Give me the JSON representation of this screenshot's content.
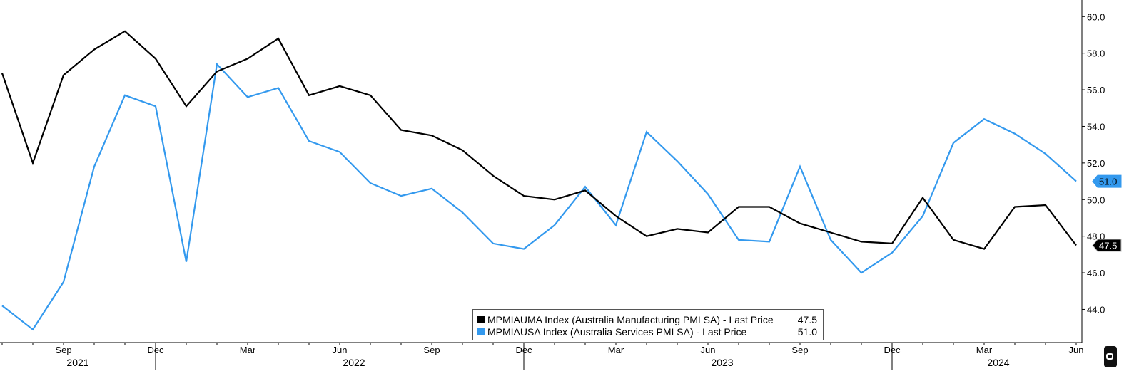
{
  "chart_data": {
    "type": "line",
    "x": [
      "2021-07",
      "2021-08",
      "2021-09",
      "2021-10",
      "2021-11",
      "2021-12",
      "2022-01",
      "2022-02",
      "2022-03",
      "2022-04",
      "2022-05",
      "2022-06",
      "2022-07",
      "2022-08",
      "2022-09",
      "2022-10",
      "2022-11",
      "2022-12",
      "2023-01",
      "2023-02",
      "2023-03",
      "2023-04",
      "2023-05",
      "2023-06",
      "2023-07",
      "2023-08",
      "2023-09",
      "2023-10",
      "2023-11",
      "2023-12",
      "2024-01",
      "2024-02",
      "2024-03",
      "2024-04",
      "2024-05",
      "2024-06"
    ],
    "series": [
      {
        "name": "MPMIAUMA Index (Australia Manufacturing PMI SA) - Last Price",
        "last_value": "47.5",
        "color": "#000000",
        "values": [
          56.9,
          52.0,
          56.8,
          58.2,
          59.2,
          57.7,
          55.1,
          57.0,
          57.7,
          58.8,
          55.7,
          56.2,
          55.7,
          53.8,
          53.5,
          52.7,
          51.3,
          50.2,
          50.0,
          50.5,
          49.1,
          48.0,
          48.4,
          48.2,
          49.6,
          49.6,
          48.7,
          48.2,
          47.7,
          47.6,
          50.1,
          47.8,
          47.3,
          49.6,
          49.7,
          47.5
        ]
      },
      {
        "name": "MPMIAUSA Index (Australia Services PMI SA) - Last Price",
        "last_value": "51.0",
        "color": "#3399ee",
        "values": [
          44.2,
          42.9,
          45.5,
          51.8,
          55.7,
          55.1,
          46.6,
          57.4,
          55.6,
          56.1,
          53.2,
          52.6,
          50.9,
          50.2,
          50.6,
          49.3,
          47.6,
          47.3,
          48.6,
          50.7,
          48.6,
          53.7,
          52.1,
          50.3,
          47.8,
          47.7,
          51.8,
          47.8,
          46.0,
          47.1,
          49.1,
          53.1,
          54.4,
          53.6,
          52.5,
          51.0
        ]
      }
    ],
    "ylim": [
      42.5,
      60.4
    ],
    "y_ticks": [
      "44.0",
      "46.0",
      "48.0",
      "50.0",
      "52.0",
      "54.0",
      "56.0",
      "58.0",
      "60.0"
    ],
    "x_ticks": [
      {
        "at": "2021-09",
        "label": "Sep"
      },
      {
        "at": "2021-12",
        "label": "Dec"
      },
      {
        "at": "2022-03",
        "label": "Mar"
      },
      {
        "at": "2022-06",
        "label": "Jun"
      },
      {
        "at": "2022-09",
        "label": "Sep"
      },
      {
        "at": "2022-12",
        "label": "Dec"
      },
      {
        "at": "2023-03",
        "label": "Mar"
      },
      {
        "at": "2023-06",
        "label": "Jun"
      },
      {
        "at": "2023-09",
        "label": "Sep"
      },
      {
        "at": "2023-12",
        "label": "Dec"
      },
      {
        "at": "2024-03",
        "label": "Mar"
      },
      {
        "at": "2024-06",
        "label": "Jun"
      }
    ],
    "years": [
      {
        "label": "2021",
        "at": "2021-09"
      },
      {
        "label": "2022",
        "at": "2022-06"
      },
      {
        "label": "2023",
        "at": "2023-06"
      },
      {
        "label": "2024",
        "at": "2024-03"
      }
    ],
    "year_boundaries": [
      "2021-12",
      "2022-12",
      "2023-12"
    ],
    "axis_side": "right",
    "grid": false,
    "legend_placement": "bottom-center"
  },
  "legend": {
    "row1_name": "MPMIAUMA Index (Australia Manufacturing PMI SA) - Last Price",
    "row1_value": "47.5",
    "row2_name": "MPMIAUSA Index (Australia Services PMI SA) - Last Price",
    "row2_value": "51.0"
  },
  "colors": {
    "manufacturing": "#000000",
    "services": "#3399ee"
  }
}
